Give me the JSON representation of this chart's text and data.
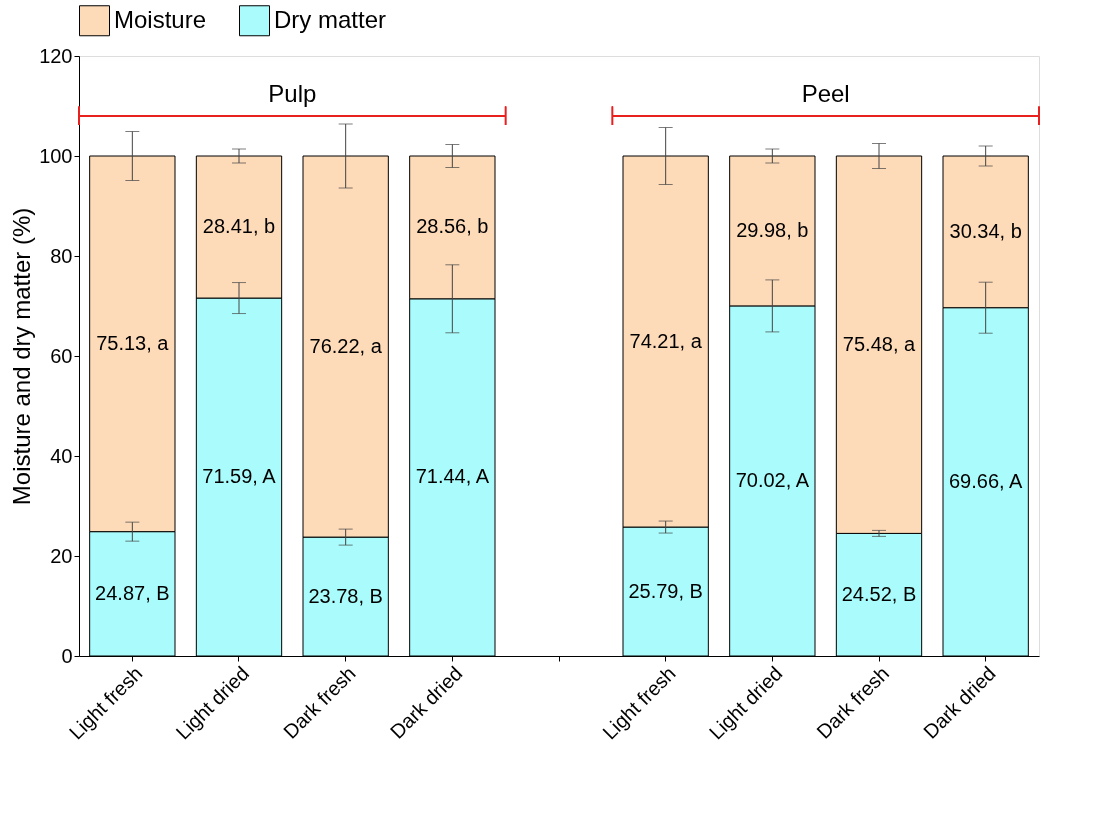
{
  "chart_data": {
    "type": "bar",
    "stacked": true,
    "ylabel": "Moisture and dry matter (%)",
    "categories": [
      "Light fresh",
      "Light dried",
      "Dark fresh",
      "Dark dried",
      null,
      "Light fresh",
      "Light dried",
      "Dark fresh",
      "Dark dried"
    ],
    "series": [
      {
        "name": "Dry matter",
        "color": "#aafcfc",
        "values": [
          24.87,
          71.59,
          23.78,
          71.44,
          null,
          25.79,
          70.02,
          24.52,
          69.66
        ],
        "errors": [
          1.9,
          3.1,
          1.6,
          6.8,
          null,
          1.2,
          5.2,
          0.6,
          5.1
        ],
        "value_labels": [
          "24.87, B",
          "71.59, A",
          "23.78, B",
          "71.44, A",
          null,
          "25.79, B",
          "70.02, A",
          "24.52, B",
          "69.66, A"
        ]
      },
      {
        "name": "Moisture",
        "color": "#fddab8",
        "values": [
          75.13,
          28.41,
          76.22,
          28.56,
          null,
          74.21,
          29.98,
          75.48,
          30.34
        ],
        "errors": [
          4.9,
          1.4,
          6.4,
          2.3,
          null,
          5.7,
          1.4,
          2.5,
          2.0
        ],
        "value_labels": [
          "75.13, a",
          "28.41, b",
          "76.22, a",
          "28.56, b",
          null,
          "74.21, a",
          "29.98, b",
          "75.48, a",
          "30.34, b"
        ]
      }
    ],
    "annotations": [
      "Pulp",
      "Peel"
    ],
    "ylim": [
      0,
      120
    ],
    "yticks": [
      0,
      20,
      40,
      60,
      80,
      100,
      120
    ],
    "grid": false,
    "legend": "top"
  }
}
